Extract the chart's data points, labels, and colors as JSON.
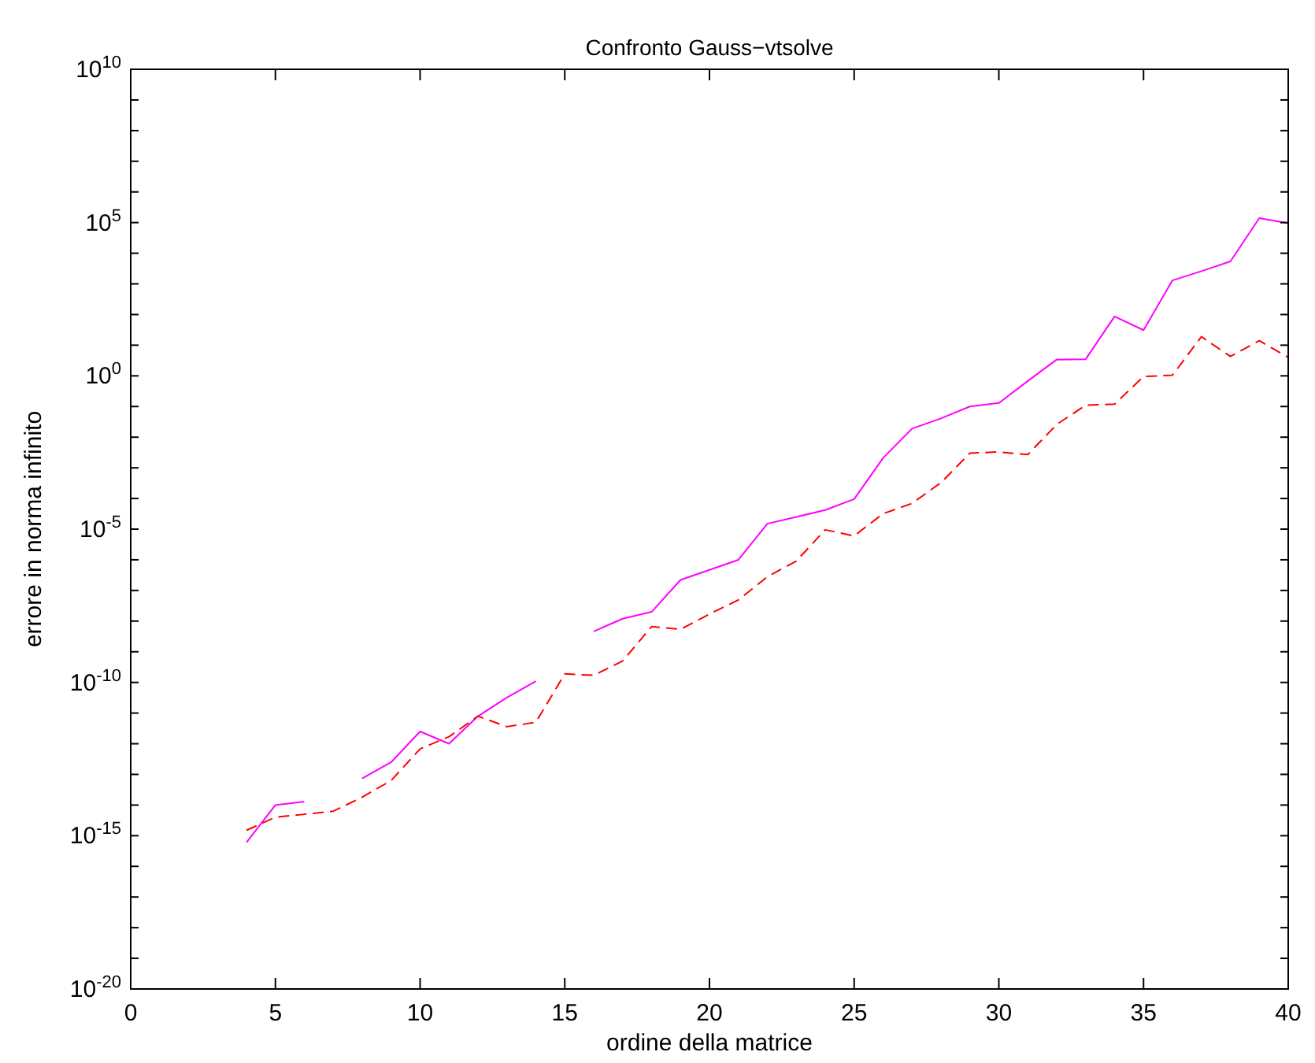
{
  "chart_data": {
    "type": "line",
    "title": "Confronto Gauss−vtsolve",
    "xlabel": "ordine della matrice",
    "ylabel": "errore in norma infinito",
    "log": "y",
    "x": [
      4,
      5,
      6,
      7,
      8,
      9,
      10,
      11,
      12,
      13,
      14,
      15,
      16,
      17,
      18,
      19,
      20,
      21,
      22,
      23,
      24,
      25,
      26,
      27,
      28,
      29,
      30,
      31,
      32,
      33,
      34,
      35,
      36,
      37,
      38,
      39,
      40
    ],
    "series": [
      {
        "color": "#ff00ff",
        "line_style": "solid",
        "values": [
          6e-16,
          1e-14,
          1.3e-14,
          null,
          7.4e-14,
          2.5e-13,
          2.5e-12,
          1e-12,
          7.9e-12,
          3.2e-11,
          1.1e-10,
          null,
          4.6e-09,
          1.2e-08,
          2e-08,
          2.2e-07,
          4.7e-07,
          1e-06,
          1.5e-05,
          2.5e-05,
          4.2e-05,
          9.5e-05,
          0.0021,
          0.019,
          0.041,
          0.1,
          0.13,
          0.68,
          3.4,
          3.5,
          87,
          31,
          1300,
          2600,
          5400,
          140000,
          95000
        ]
      },
      {
        "color": "#ff0000",
        "line_style": "dashed",
        "values": [
          1.5e-15,
          4e-15,
          5e-15,
          6.3e-15,
          1.8e-14,
          6.3e-14,
          6.8e-13,
          1.7e-12,
          7.9e-12,
          3.6e-12,
          5e-12,
          1.9e-10,
          1.7e-10,
          5e-10,
          6.6e-09,
          5.4e-09,
          1.7e-08,
          4.9e-08,
          2.8e-07,
          9.1e-07,
          9.5e-06,
          6e-06,
          3.2e-05,
          6.9e-05,
          0.00033,
          0.003,
          0.0033,
          0.0027,
          0.026,
          0.11,
          0.12,
          0.95,
          1.05,
          19,
          4.3,
          14,
          4
        ]
      }
    ],
    "xlim": [
      0,
      40
    ],
    "xticks": [
      0,
      5,
      10,
      15,
      20,
      25,
      30,
      35,
      40
    ],
    "ylim": [
      1e-20,
      10000000000.0
    ],
    "yticks": [
      {
        "value": 1e-20,
        "label": "10$^{-20}$"
      },
      {
        "value": 1e-19,
        "label": null
      },
      {
        "value": 1e-18,
        "label": null
      },
      {
        "value": 1e-17,
        "label": null
      },
      {
        "value": 1e-16,
        "label": null
      },
      {
        "value": 1e-15,
        "label": "10$^{-15}$"
      },
      {
        "value": 1e-14,
        "label": null
      },
      {
        "value": 1e-13,
        "label": null
      },
      {
        "value": 1e-12,
        "label": null
      },
      {
        "value": 1e-11,
        "label": null
      },
      {
        "value": 1e-10,
        "label": "10$^{-10}$"
      },
      {
        "value": 1e-09,
        "label": null
      },
      {
        "value": 1e-08,
        "label": null
      },
      {
        "value": 1e-07,
        "label": null
      },
      {
        "value": 1e-06,
        "label": null
      },
      {
        "value": 1e-05,
        "label": "10$^{-5}$"
      },
      {
        "value": 0.0001,
        "label": null
      },
      {
        "value": 0.001,
        "label": null
      },
      {
        "value": 0.01,
        "label": null
      },
      {
        "value": 0.1,
        "label": null
      },
      {
        "value": 1,
        "label": "10$^{0}$"
      },
      {
        "value": 10,
        "label": null
      },
      {
        "value": 100,
        "label": null
      },
      {
        "value": 1000,
        "label": null
      },
      {
        "value": 10000,
        "label": null
      },
      {
        "value": 100000,
        "label": "10$^{5}$"
      },
      {
        "value": 1000000.0,
        "label": null
      },
      {
        "value": 10000000.0,
        "label": null
      },
      {
        "value": 100000000.0,
        "label": null
      },
      {
        "value": 1000000000.0,
        "label": null
      },
      {
        "value": 10000000000.0,
        "label": "10$^{10}$"
      }
    ],
    "grid": false
  }
}
